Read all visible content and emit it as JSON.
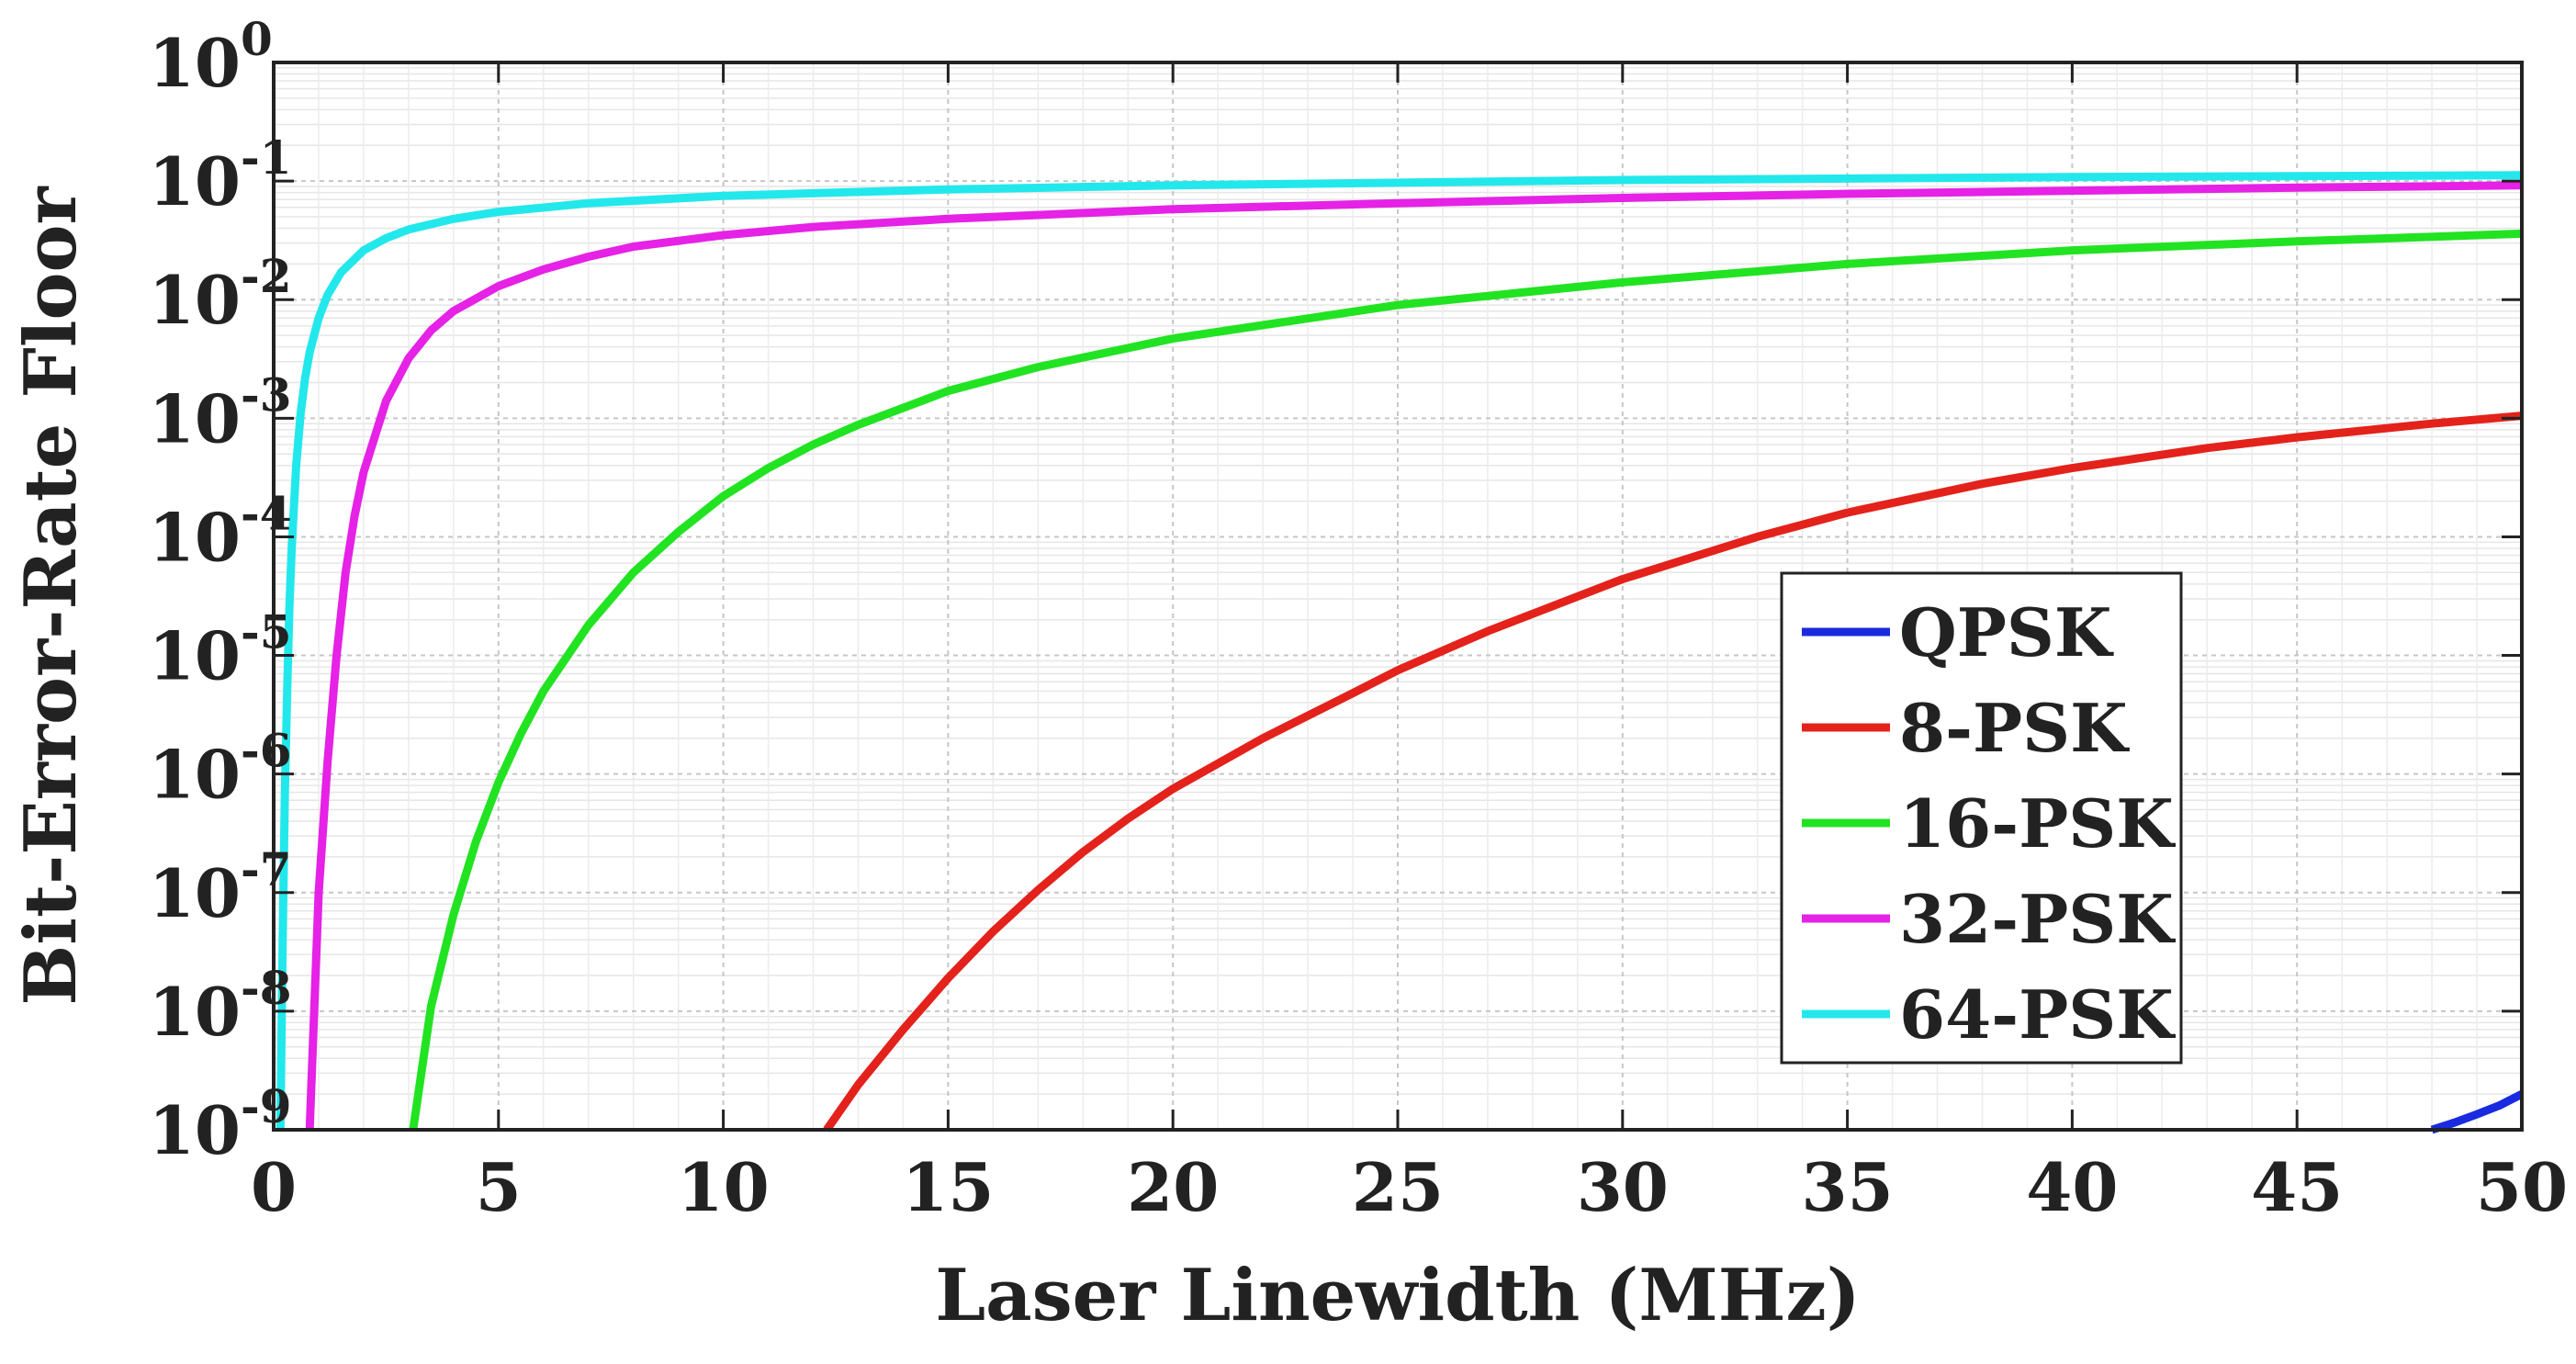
{
  "chart_data": {
    "type": "line",
    "title": "",
    "xlabel": "Laser Linewidth (MHz)",
    "ylabel": "Bit-Error-Rate Floor",
    "xlim": [
      0,
      50
    ],
    "ylim": [
      1e-09,
      1
    ],
    "yscale": "log",
    "xticks": [
      0,
      5,
      10,
      15,
      20,
      25,
      30,
      35,
      40,
      45,
      50
    ],
    "xtick_labels": [
      "0",
      "5",
      "10",
      "15",
      "20",
      "25",
      "30",
      "35",
      "40",
      "45",
      "50"
    ],
    "yticks": [
      {
        "value": 1.0,
        "base": "10",
        "exp": "0"
      },
      {
        "value": 0.1,
        "base": "10",
        "exp": "-1"
      },
      {
        "value": 0.01,
        "base": "10",
        "exp": "-2"
      },
      {
        "value": 0.001,
        "base": "10",
        "exp": "-3"
      },
      {
        "value": 0.0001,
        "base": "10",
        "exp": "-4"
      },
      {
        "value": 1e-05,
        "base": "10",
        "exp": "-5"
      },
      {
        "value": 1e-06,
        "base": "10",
        "exp": "-6"
      },
      {
        "value": 1e-07,
        "base": "10",
        "exp": "-7"
      },
      {
        "value": 1e-08,
        "base": "10",
        "exp": "-8"
      },
      {
        "value": 1e-09,
        "base": "10",
        "exp": "-9"
      }
    ],
    "grid": true,
    "minor_grid": true,
    "legend": {
      "placement": "lower-right",
      "entries": [
        "QPSK",
        "8-PSK",
        "16-PSK",
        "32-PSK",
        "64-PSK"
      ]
    },
    "series": [
      {
        "name": "QPSK",
        "color": "#1a2adf",
        "x": [
          48,
          48.5,
          49,
          49.5,
          50
        ],
        "y": [
          1e-09,
          1.15e-09,
          1.35e-09,
          1.6e-09,
          2e-09
        ]
      },
      {
        "name": "8-PSK",
        "color": "#e3221b",
        "x": [
          12.3,
          13,
          14,
          15,
          16,
          17,
          18,
          19,
          20,
          22,
          24,
          25,
          27,
          30,
          33,
          35,
          38,
          40,
          43,
          45,
          48,
          50
        ],
        "y": [
          1e-09,
          2.4e-09,
          7e-09,
          1.9e-08,
          4.7e-08,
          1.05e-07,
          2.2e-07,
          4.2e-07,
          7.5e-07,
          2e-06,
          4.8e-06,
          7.5e-06,
          1.6e-05,
          4.4e-05,
          0.0001,
          0.00016,
          0.00028,
          0.00038,
          0.00056,
          0.00069,
          0.0009,
          0.00105
        ]
      },
      {
        "name": "16-PSK",
        "color": "#22e322",
        "x": [
          3.1,
          3.5,
          4,
          4.5,
          5,
          5.5,
          6,
          7,
          8,
          9,
          10,
          11,
          12,
          13,
          15,
          17,
          20,
          25,
          30,
          35,
          40,
          45,
          50
        ],
        "y": [
          1e-09,
          1.1e-08,
          6.5e-08,
          2.7e-07,
          8.5e-07,
          2.2e-06,
          5e-06,
          1.8e-05,
          5e-05,
          0.00011,
          0.00022,
          0.00038,
          0.0006,
          0.00088,
          0.0017,
          0.0027,
          0.0047,
          0.009,
          0.014,
          0.02,
          0.026,
          0.031,
          0.036
        ]
      },
      {
        "name": "32-PSK",
        "color": "#e522e5",
        "x": [
          0.8,
          0.9,
          1.0,
          1.2,
          1.4,
          1.6,
          1.8,
          2.0,
          2.5,
          3,
          3.5,
          4,
          5,
          6,
          7,
          8,
          10,
          12,
          15,
          20,
          25,
          30,
          35,
          40,
          45,
          50
        ],
        "y": [
          1e-09,
          1e-08,
          1e-07,
          1.3e-06,
          1e-05,
          5e-05,
          0.00015,
          0.00035,
          0.0014,
          0.0032,
          0.0055,
          0.008,
          0.013,
          0.018,
          0.023,
          0.028,
          0.035,
          0.041,
          0.048,
          0.058,
          0.065,
          0.072,
          0.078,
          0.083,
          0.088,
          0.092
        ]
      },
      {
        "name": "64-PSK",
        "color": "#22e8ec",
        "x": [
          0.15,
          0.2,
          0.25,
          0.3,
          0.35,
          0.4,
          0.5,
          0.6,
          0.7,
          0.8,
          1.0,
          1.2,
          1.5,
          2.0,
          2.5,
          3,
          4,
          5,
          7,
          10,
          15,
          20,
          30,
          40,
          50
        ],
        "y": [
          1e-09,
          4e-08,
          7e-07,
          5e-06,
          2.5e-05,
          8e-05,
          0.0004,
          0.0011,
          0.0022,
          0.0036,
          0.007,
          0.011,
          0.017,
          0.026,
          0.033,
          0.039,
          0.048,
          0.055,
          0.065,
          0.075,
          0.085,
          0.092,
          0.102,
          0.108,
          0.112
        ]
      }
    ]
  }
}
